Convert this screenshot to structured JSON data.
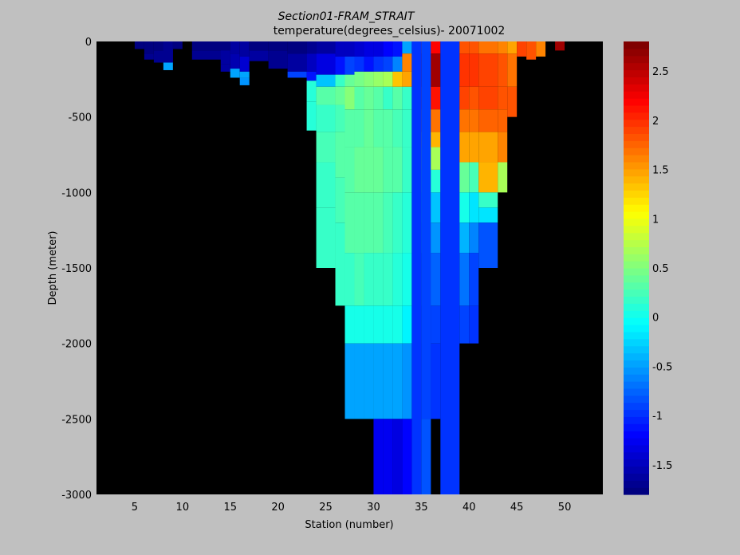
{
  "chart_data": {
    "type": "heatmap",
    "title": "Section01-FRAM_STRAIT",
    "subtitle": "temperature(degrees_celsius)- 20071002",
    "xlabel": "Station (number)",
    "ylabel": "Depth (meter)",
    "xlim": [
      1,
      54
    ],
    "ylim": [
      -3000,
      0
    ],
    "xticks": [
      5,
      10,
      15,
      20,
      25,
      30,
      35,
      40,
      45,
      50
    ],
    "yticks": [
      0,
      -500,
      -1000,
      -1500,
      -2000,
      -2500,
      -3000
    ],
    "colorbar": {
      "range": [
        -1.8,
        2.8
      ],
      "ticks": [
        2.5,
        2,
        1.5,
        1,
        0.5,
        0,
        -0.5,
        -1,
        -1.5
      ],
      "colormap": "jet"
    },
    "background_color": "#000000",
    "columns": [
      {
        "x0": 5,
        "x1": 6,
        "bottom": -100,
        "cells": [
          [
            -0.05,
            -1.8
          ]
        ]
      },
      {
        "x0": 6,
        "x1": 7,
        "bottom": -120,
        "cells": [
          [
            -0.08,
            -1.75
          ],
          [
            -0.12,
            -1.7
          ]
        ]
      },
      {
        "x0": 7,
        "x1": 9,
        "bottom": -140,
        "cells": [
          [
            -0.06,
            -1.75
          ],
          [
            -0.14,
            -1.7
          ]
        ]
      },
      {
        "x0": 8,
        "x1": 9,
        "bottom": -190,
        "cells": [
          [
            -0.14,
            -1.7
          ],
          [
            -0.19,
            -0.5
          ]
        ]
      },
      {
        "x0": 9,
        "x1": 10,
        "bottom": -50,
        "cells": [
          [
            -0.05,
            -1.75
          ]
        ]
      },
      {
        "x0": 11,
        "x1": 15,
        "bottom": -120,
        "cells": [
          [
            -0.06,
            -1.75
          ],
          [
            -0.12,
            -1.72
          ]
        ]
      },
      {
        "x0": 14,
        "x1": 15,
        "bottom": -200,
        "cells": [
          [
            -0.06,
            -1.75
          ],
          [
            -0.15,
            -1.65
          ],
          [
            -0.2,
            -1.6
          ]
        ]
      },
      {
        "x0": 15,
        "x1": 16,
        "bottom": -240,
        "cells": [
          [
            -0.08,
            -1.65
          ],
          [
            -0.18,
            -1.55
          ],
          [
            -0.24,
            -0.5
          ]
        ]
      },
      {
        "x0": 16,
        "x1": 17,
        "bottom": -290,
        "cells": [
          [
            -0.1,
            -1.6
          ],
          [
            -0.2,
            -1.4
          ],
          [
            -0.24,
            -0.5
          ],
          [
            -0.29,
            -0.55
          ]
        ]
      },
      {
        "x0": 17,
        "x1": 19,
        "bottom": -130,
        "cells": [
          [
            -0.06,
            -1.75
          ],
          [
            -0.13,
            -1.65
          ]
        ]
      },
      {
        "x0": 19,
        "x1": 21,
        "bottom": -180,
        "cells": [
          [
            -0.06,
            -1.75
          ],
          [
            -0.18,
            -1.7
          ]
        ]
      },
      {
        "x0": 21,
        "x1": 23,
        "bottom": -240,
        "cells": [
          [
            -0.08,
            -1.75
          ],
          [
            -0.2,
            -1.6
          ],
          [
            -0.24,
            -0.9
          ]
        ]
      },
      {
        "x0": 23,
        "x1": 24,
        "bottom": -590,
        "cells": [
          [
            -0.08,
            -1.7
          ],
          [
            -0.2,
            -1.5
          ],
          [
            -0.26,
            -1.1
          ],
          [
            -0.4,
            0.1
          ],
          [
            -0.59,
            0.1
          ]
        ]
      },
      {
        "x0": 24,
        "x1": 26,
        "bottom": -1500,
        "cells": [
          [
            -0.08,
            -1.6
          ],
          [
            -0.22,
            -1.3
          ],
          [
            -0.3,
            -0.3
          ],
          [
            -0.42,
            0.35
          ],
          [
            -0.6,
            0.2
          ],
          [
            -0.8,
            0.25
          ],
          [
            -1.1,
            0.2
          ],
          [
            -1.5,
            0.15
          ]
        ]
      },
      {
        "x0": 26,
        "x1": 27,
        "bottom": -1750,
        "cells": [
          [
            -0.1,
            -1.5
          ],
          [
            -0.22,
            -1.1
          ],
          [
            -0.3,
            0.2
          ],
          [
            -0.42,
            0.4
          ],
          [
            -0.6,
            0.25
          ],
          [
            -0.9,
            0.3
          ],
          [
            -1.2,
            0.28
          ],
          [
            -1.75,
            0.2
          ]
        ]
      },
      {
        "x0": 27,
        "x1": 28,
        "bottom": -2500,
        "cells": [
          [
            -0.1,
            -1.5
          ],
          [
            -0.22,
            -0.9
          ],
          [
            -0.3,
            0.4
          ],
          [
            -0.45,
            0.5
          ],
          [
            -0.7,
            0.3
          ],
          [
            -1.0,
            0.35
          ],
          [
            -1.4,
            0.3
          ],
          [
            -1.75,
            0.2
          ],
          [
            -2.0,
            0.0
          ],
          [
            -2.5,
            -0.45
          ]
        ]
      },
      {
        "x0": 28,
        "x1": 29,
        "bottom": -2500,
        "cells": [
          [
            -0.1,
            -1.4
          ],
          [
            -0.2,
            -1.0
          ],
          [
            -0.3,
            0.45
          ],
          [
            -0.45,
            0.35
          ],
          [
            -0.7,
            0.35
          ],
          [
            -1.0,
            0.4
          ],
          [
            -1.4,
            0.32
          ],
          [
            -1.75,
            0.22
          ],
          [
            -2.0,
            0.0
          ],
          [
            -2.5,
            -0.45
          ]
        ]
      },
      {
        "x0": 29,
        "x1": 30,
        "bottom": -2500,
        "cells": [
          [
            -0.1,
            -1.3
          ],
          [
            -0.2,
            -1.1
          ],
          [
            -0.3,
            0.55
          ],
          [
            -0.45,
            0.4
          ],
          [
            -0.7,
            0.4
          ],
          [
            -1.0,
            0.42
          ],
          [
            -1.4,
            0.35
          ],
          [
            -1.75,
            0.2
          ],
          [
            -2.0,
            0.05
          ],
          [
            -2.5,
            -0.5
          ]
        ]
      },
      {
        "x0": 30,
        "x1": 31,
        "bottom": -3000,
        "cells": [
          [
            -0.1,
            -1.3
          ],
          [
            -0.2,
            -1.0
          ],
          [
            -0.3,
            0.6
          ],
          [
            -0.45,
            0.3
          ],
          [
            -0.7,
            0.35
          ],
          [
            -1.0,
            0.42
          ],
          [
            -1.4,
            0.3
          ],
          [
            -1.75,
            0.2
          ],
          [
            -2.0,
            0.0
          ],
          [
            -2.5,
            -0.5
          ],
          [
            -3.0,
            -1.25
          ]
        ]
      },
      {
        "x0": 31,
        "x1": 32,
        "bottom": -3000,
        "cells": [
          [
            -0.1,
            -1.2
          ],
          [
            -0.2,
            -0.9
          ],
          [
            -0.3,
            0.7
          ],
          [
            -0.45,
            0.2
          ],
          [
            -0.7,
            0.3
          ],
          [
            -1.0,
            0.35
          ],
          [
            -1.4,
            0.25
          ],
          [
            -1.75,
            0.15
          ],
          [
            -2.0,
            0.0
          ],
          [
            -2.5,
            -0.45
          ],
          [
            -3.0,
            -1.25
          ]
        ]
      },
      {
        "x0": 32,
        "x1": 33,
        "bottom": -3000,
        "cells": [
          [
            -0.1,
            -1.1
          ],
          [
            -0.2,
            -0.6
          ],
          [
            -0.3,
            1.3
          ],
          [
            -0.45,
            0.3
          ],
          [
            -0.7,
            0.25
          ],
          [
            -1.0,
            0.3
          ],
          [
            -1.4,
            0.2
          ],
          [
            -1.75,
            0.1
          ],
          [
            -2.0,
            0.0
          ],
          [
            -2.5,
            -0.5
          ],
          [
            -3.0,
            -1.3
          ]
        ]
      },
      {
        "x0": 33,
        "x1": 34,
        "bottom": -3000,
        "cells": [
          [
            -0.08,
            -0.5
          ],
          [
            -0.2,
            1.6
          ],
          [
            -0.3,
            1.5
          ],
          [
            -0.45,
            0.2
          ],
          [
            -0.7,
            0.15
          ],
          [
            -1.0,
            0.2
          ],
          [
            -1.4,
            0.1
          ],
          [
            -1.75,
            0.0
          ],
          [
            -2.0,
            -0.1
          ],
          [
            -2.5,
            -0.55
          ],
          [
            -3.0,
            -1.2
          ]
        ]
      },
      {
        "x0": 34,
        "x1": 35,
        "bottom": -3000,
        "cells": [
          [
            -3.0,
            -1.0
          ]
        ]
      },
      {
        "x0": 35,
        "x1": 36,
        "bottom": -2500,
        "cells": [
          [
            -0.08,
            1.9
          ],
          [
            -0.3,
            2.3
          ],
          [
            -0.45,
            1.9
          ],
          [
            -0.6,
            1.6
          ],
          [
            -0.7,
            1.2
          ],
          [
            -0.85,
            0.6
          ],
          [
            -1.0,
            0.2
          ],
          [
            -1.2,
            -0.1
          ],
          [
            -1.4,
            -0.35
          ],
          [
            -1.75,
            -0.6
          ],
          [
            -2.0,
            -0.8
          ],
          [
            -2.5,
            -0.9
          ]
        ]
      },
      {
        "x0": 35,
        "x1": 36,
        "bottom": -3000,
        "cells": [
          [
            -2.5,
            -0.9
          ],
          [
            -3.0,
            -0.8
          ]
        ]
      },
      {
        "x0": 36,
        "x1": 37,
        "bottom": -2500,
        "cells": [
          [
            -0.08,
            2.2
          ],
          [
            -0.3,
            2.6
          ],
          [
            -0.45,
            2.1
          ],
          [
            -0.6,
            1.7
          ],
          [
            -0.7,
            1.4
          ],
          [
            -0.85,
            0.7
          ],
          [
            -1.0,
            0.1
          ],
          [
            -1.2,
            -0.3
          ],
          [
            -1.4,
            -0.55
          ],
          [
            -1.75,
            -0.75
          ],
          [
            -2.0,
            -0.9
          ],
          [
            -2.5,
            -1.0
          ]
        ]
      },
      {
        "x0": 37,
        "x1": 39,
        "bottom": -3000,
        "cells": [
          [
            -3.0,
            -1.0
          ]
        ]
      },
      {
        "x0": 39,
        "x1": 40,
        "bottom": -2000,
        "cells": [
          [
            -0.08,
            1.8
          ],
          [
            -0.3,
            2.0
          ],
          [
            -0.45,
            1.9
          ],
          [
            -0.6,
            1.7
          ],
          [
            -0.8,
            1.5
          ],
          [
            -1.0,
            0.4
          ],
          [
            -1.2,
            0.0
          ],
          [
            -1.4,
            -0.4
          ],
          [
            -1.75,
            -0.7
          ],
          [
            -2.0,
            -0.9
          ]
        ]
      },
      {
        "x0": 40,
        "x1": 41,
        "bottom": -2000,
        "cells": [
          [
            -0.08,
            1.8
          ],
          [
            -0.3,
            1.95
          ],
          [
            -0.45,
            1.85
          ],
          [
            -0.6,
            1.7
          ],
          [
            -0.8,
            1.5
          ],
          [
            -1.0,
            0.25
          ],
          [
            -1.2,
            -0.2
          ],
          [
            -1.4,
            -0.6
          ],
          [
            -1.75,
            -0.9
          ],
          [
            -2.0,
            -1.0
          ]
        ]
      },
      {
        "x0": 41,
        "x1": 43,
        "bottom": -1500,
        "cells": [
          [
            -0.08,
            1.7
          ],
          [
            -0.3,
            1.9
          ],
          [
            -0.45,
            1.9
          ],
          [
            -0.6,
            1.75
          ],
          [
            -0.8,
            1.5
          ],
          [
            -1.0,
            1.4
          ],
          [
            -1.1,
            0.2
          ],
          [
            -1.2,
            -0.2
          ],
          [
            -1.5,
            -0.8
          ]
        ]
      },
      {
        "x0": 43,
        "x1": 44,
        "bottom": -1000,
        "cells": [
          [
            -0.08,
            1.6
          ],
          [
            -0.3,
            1.8
          ],
          [
            -0.45,
            1.85
          ],
          [
            -0.6,
            1.75
          ],
          [
            -0.8,
            1.6
          ],
          [
            -1.0,
            0.7
          ]
        ]
      },
      {
        "x0": 44,
        "x1": 45,
        "bottom": -500,
        "cells": [
          [
            -0.08,
            1.5
          ],
          [
            -0.3,
            1.7
          ],
          [
            -0.5,
            1.8
          ]
        ]
      },
      {
        "x0": 45,
        "x1": 46,
        "bottom": -100,
        "cells": [
          [
            -0.1,
            1.9
          ]
        ]
      },
      {
        "x0": 46,
        "x1": 47,
        "bottom": -120,
        "cells": [
          [
            -0.12,
            1.8
          ]
        ]
      },
      {
        "x0": 47,
        "x1": 48,
        "bottom": -100,
        "cells": [
          [
            -0.1,
            1.6
          ]
        ]
      },
      {
        "x0": 49,
        "x1": 50,
        "bottom": -60,
        "cells": [
          [
            -0.06,
            2.6
          ]
        ]
      }
    ]
  }
}
